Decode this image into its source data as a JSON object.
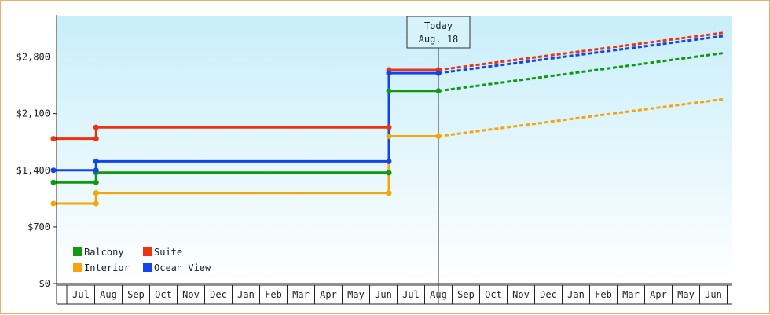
{
  "chart_data": {
    "type": "line",
    "title": "",
    "xlabel": "",
    "ylabel": "",
    "ylim": [
      0,
      3300
    ],
    "y_ticks": [
      {
        "value": 0,
        "label": "$0"
      },
      {
        "value": 700,
        "label": "$700"
      },
      {
        "value": 1400,
        "label": "$1,400"
      },
      {
        "value": 2100,
        "label": "$2,100"
      },
      {
        "value": 2800,
        "label": "$2,800"
      }
    ],
    "x_ticks": [
      {
        "month": 1,
        "label": "Jul"
      },
      {
        "month": 2,
        "label": "Aug"
      },
      {
        "month": 3,
        "label": "Sep"
      },
      {
        "month": 4,
        "label": "Oct"
      },
      {
        "month": 5,
        "label": "Nov"
      },
      {
        "month": 6,
        "label": "Dec"
      },
      {
        "month": 7,
        "label": "Jan"
      },
      {
        "month": 8,
        "label": "Feb"
      },
      {
        "month": 9,
        "label": "Mar"
      },
      {
        "month": 10,
        "label": "Apr"
      },
      {
        "month": 11,
        "label": "May"
      },
      {
        "month": 12,
        "label": "Jun"
      },
      {
        "month": 13,
        "label": "Jul"
      },
      {
        "month": 14,
        "label": "Aug"
      },
      {
        "month": 15,
        "label": "Sep"
      },
      {
        "month": 16,
        "label": "Oct"
      },
      {
        "month": 17,
        "label": "Nov"
      },
      {
        "month": 18,
        "label": "Dec"
      },
      {
        "month": 19,
        "label": "Jan"
      },
      {
        "month": 20,
        "label": "Feb"
      },
      {
        "month": 21,
        "label": "Mar"
      },
      {
        "month": 22,
        "label": "Apr"
      },
      {
        "month": 23,
        "label": "May"
      },
      {
        "month": 24,
        "label": "Jun"
      }
    ],
    "x_range": [
      0,
      24.4
    ],
    "today": {
      "x": 14.0,
      "line1": "Today",
      "line2": "Aug. 18"
    },
    "grid": false,
    "legend_position": "bottom-left",
    "background": {
      "top": "#c8eefa",
      "bottom": "#ffffff"
    },
    "series": [
      {
        "name": "Balcony",
        "color": "#119911",
        "history": [
          [
            0,
            1250
          ],
          [
            1.55,
            1250
          ],
          [
            1.55,
            1370
          ],
          [
            12.2,
            1370
          ],
          [
            12.2,
            2380
          ],
          [
            14.0,
            2380
          ]
        ],
        "markers": [
          [
            0,
            1250
          ],
          [
            1.55,
            1250
          ],
          [
            1.55,
            1370
          ],
          [
            12.2,
            1370
          ],
          [
            12.2,
            2380
          ],
          [
            14.0,
            2380
          ]
        ],
        "forecast": [
          [
            14.0,
            2380
          ],
          [
            24.4,
            2850
          ]
        ]
      },
      {
        "name": "Interior",
        "color": "#f5a40a",
        "history": [
          [
            0,
            990
          ],
          [
            1.55,
            990
          ],
          [
            1.55,
            1120
          ],
          [
            12.2,
            1120
          ],
          [
            12.2,
            1820
          ],
          [
            14.0,
            1820
          ]
        ],
        "markers": [
          [
            0,
            990
          ],
          [
            1.55,
            990
          ],
          [
            1.55,
            1120
          ],
          [
            12.2,
            1120
          ],
          [
            12.2,
            1820
          ],
          [
            14.0,
            1820
          ]
        ],
        "forecast": [
          [
            14.0,
            1820
          ],
          [
            24.4,
            2280
          ]
        ]
      },
      {
        "name": "Suite",
        "color": "#ee3311",
        "history": [
          [
            0,
            1790
          ],
          [
            1.55,
            1790
          ],
          [
            1.55,
            1930
          ],
          [
            12.2,
            1930
          ],
          [
            12.2,
            2640
          ],
          [
            14.0,
            2640
          ]
        ],
        "markers": [
          [
            0,
            1790
          ],
          [
            1.55,
            1790
          ],
          [
            1.55,
            1930
          ],
          [
            12.2,
            1930
          ],
          [
            12.2,
            2640
          ],
          [
            14.0,
            2640
          ]
        ],
        "forecast": [
          [
            14.0,
            2640
          ],
          [
            24.4,
            3100
          ]
        ]
      },
      {
        "name": "Ocean View",
        "color": "#1144ee",
        "history": [
          [
            0,
            1400
          ],
          [
            1.55,
            1400
          ],
          [
            1.55,
            1510
          ],
          [
            12.2,
            1510
          ],
          [
            12.2,
            2600
          ],
          [
            14.0,
            2600
          ]
        ],
        "markers": [
          [
            0,
            1400
          ],
          [
            1.55,
            1400
          ],
          [
            1.55,
            1510
          ],
          [
            12.2,
            1510
          ],
          [
            12.2,
            2600
          ],
          [
            14.0,
            2600
          ]
        ],
        "forecast": [
          [
            14.0,
            2600
          ],
          [
            24.4,
            3060
          ]
        ]
      }
    ],
    "legend_order": [
      "Balcony",
      "Suite",
      "Interior",
      "Ocean View"
    ]
  }
}
